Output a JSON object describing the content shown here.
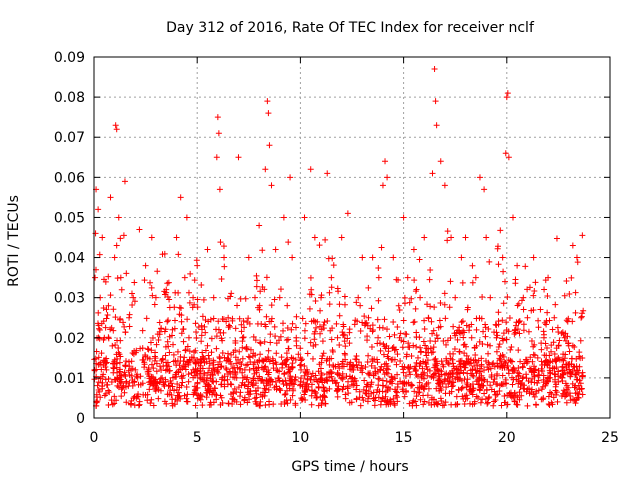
{
  "chart_data": {
    "type": "scatter",
    "title": "Day 312 of 2016, Rate Of TEC Index for receiver nclf",
    "xlabel": "GPS time / hours",
    "ylabel": "ROTI / TECUs",
    "xlim": [
      0,
      25
    ],
    "ylim": [
      0,
      0.09
    ],
    "xticks": [
      0,
      5,
      10,
      15,
      20,
      25
    ],
    "xtick_labels": [
      "0",
      "5",
      "10",
      "15",
      "20",
      "25"
    ],
    "yticks": [
      0,
      0.01,
      0.02,
      0.03,
      0.04,
      0.05,
      0.06,
      0.07,
      0.08,
      0.09
    ],
    "ytick_labels": [
      "0",
      "0.01",
      "0.02",
      "0.03",
      "0.04",
      "0.05",
      "0.06",
      "0.07",
      "0.08",
      "0.09"
    ],
    "grid": true,
    "marker": "+",
    "colors": {
      "series": "#ff0000",
      "grid": "#a0a0a0",
      "axis": "#000000"
    },
    "series": [
      {
        "name": "ROTI",
        "note": "Dense scatter (thousands of points) from 0 to ~23.7 h; core band 0.004-0.015, frequent bursts to 0.03-0.05; listed points are the visible peaks and representative samples",
        "x": [
          0.05,
          0.1,
          0.2,
          0.3,
          0.4,
          0.5,
          0.6,
          0.7,
          0.8,
          1.0,
          1.05,
          1.1,
          1.2,
          1.3,
          1.5,
          1.7,
          1.9,
          2.0,
          2.2,
          2.5,
          2.6,
          2.8,
          3.0,
          3.3,
          3.5,
          3.8,
          4.0,
          4.2,
          4.4,
          4.5,
          4.6,
          4.8,
          5.0,
          5.3,
          5.5,
          5.8,
          5.95,
          6.0,
          6.05,
          6.1,
          6.3,
          6.5,
          7.0,
          7.2,
          7.5,
          7.8,
          8.0,
          8.3,
          8.4,
          8.45,
          8.5,
          8.6,
          8.8,
          9.0,
          9.2,
          9.5,
          9.6,
          9.8,
          10.0,
          10.2,
          10.5,
          10.7,
          11.0,
          11.3,
          11.5,
          11.8,
          12.0,
          12.3,
          12.5,
          12.8,
          13.0,
          13.3,
          13.5,
          13.8,
          14.0,
          14.1,
          14.2,
          14.5,
          14.8,
          15.0,
          15.2,
          15.5,
          15.8,
          16.0,
          16.2,
          16.4,
          16.5,
          16.55,
          16.6,
          16.8,
          17.0,
          17.3,
          17.5,
          17.8,
          18.0,
          18.3,
          18.5,
          18.7,
          18.9,
          19.0,
          19.2,
          19.5,
          19.8,
          19.95,
          20.0,
          20.05,
          20.1,
          20.3,
          20.5,
          20.8,
          21.0,
          21.3,
          21.5,
          21.8,
          22.0,
          22.3,
          22.5,
          22.8,
          23.0,
          23.2,
          23.4,
          23.6
        ],
        "y": [
          0.035,
          0.057,
          0.052,
          0.03,
          0.045,
          0.02,
          0.012,
          0.028,
          0.055,
          0.04,
          0.073,
          0.072,
          0.05,
          0.035,
          0.059,
          0.025,
          0.03,
          0.012,
          0.047,
          0.038,
          0.015,
          0.045,
          0.03,
          0.01,
          0.032,
          0.022,
          0.045,
          0.055,
          0.035,
          0.05,
          0.02,
          0.03,
          0.038,
          0.015,
          0.042,
          0.03,
          0.065,
          0.075,
          0.071,
          0.057,
          0.04,
          0.025,
          0.065,
          0.02,
          0.04,
          0.03,
          0.048,
          0.062,
          0.079,
          0.076,
          0.068,
          0.058,
          0.042,
          0.03,
          0.05,
          0.06,
          0.04,
          0.02,
          0.015,
          0.05,
          0.062,
          0.045,
          0.03,
          0.061,
          0.035,
          0.02,
          0.045,
          0.051,
          0.012,
          0.03,
          0.04,
          0.025,
          0.04,
          0.035,
          0.058,
          0.064,
          0.06,
          0.04,
          0.02,
          0.05,
          0.035,
          0.042,
          0.03,
          0.045,
          0.025,
          0.061,
          0.087,
          0.079,
          0.073,
          0.064,
          0.058,
          0.045,
          0.03,
          0.04,
          0.045,
          0.02,
          0.035,
          0.06,
          0.057,
          0.045,
          0.03,
          0.02,
          0.04,
          0.066,
          0.08,
          0.081,
          0.065,
          0.05,
          0.038,
          0.03,
          0.025,
          0.04,
          0.015,
          0.02,
          0.035,
          0.025,
          0.015,
          0.02,
          0.018,
          0.043,
          0.04,
          0.025
        ]
      }
    ]
  }
}
